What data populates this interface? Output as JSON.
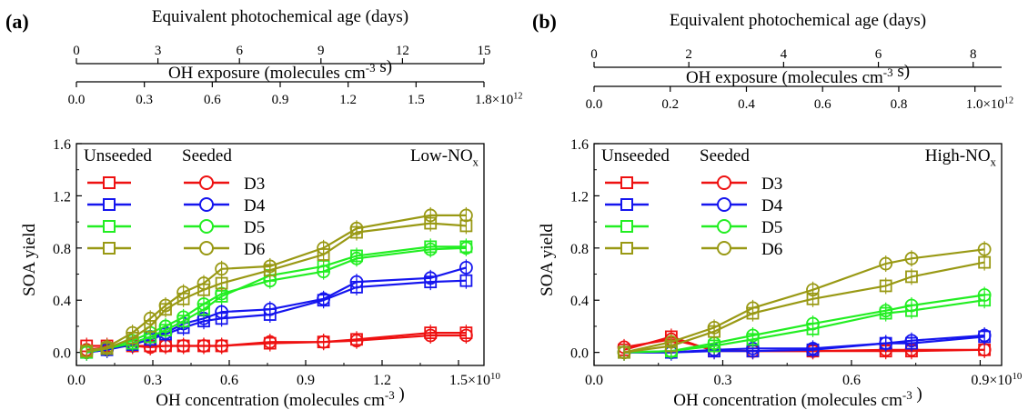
{
  "chart_data": [
    {
      "type": "line",
      "panel_label": "(a)",
      "xlabel": "OH concentration (molecules cm",
      "xlabel_exp": "-3",
      "xlabel_tail": " )",
      "xlim": [
        0,
        1.6
      ],
      "x_ticks": [
        "0.0",
        "0.3",
        "0.6",
        "0.9",
        "1.2"
      ],
      "x_tick_values": [
        0,
        0.3,
        0.6,
        0.9,
        1.2
      ],
      "x_last_tick": "1.5",
      "x_last_tick_value": 1.5,
      "x_multiplier": "×10",
      "x_multiplier_exp": "10",
      "ylabel": "SOA yield",
      "ylim": [
        -0.1,
        1.6
      ],
      "y_ticks": [
        "0.0",
        "0.4",
        "0.8",
        "1.2",
        "1.6"
      ],
      "y_tick_values": [
        0,
        0.4,
        0.8,
        1.2,
        1.6
      ],
      "top_axis_1": {
        "label": "OH exposure (molecules cm",
        "label_exp": "-3",
        "label_tail": " s)",
        "xlim": [
          0,
          1.8
        ],
        "ticks": [
          "0.0",
          "0.3",
          "0.6",
          "0.9",
          "1.2",
          "1.5"
        ],
        "tick_values": [
          0,
          0.3,
          0.6,
          0.9,
          1.2,
          1.5
        ],
        "last_tick": "1.8",
        "last_tick_value": 1.8,
        "multiplier": "×10",
        "multiplier_exp": "12"
      },
      "top_axis_2": {
        "label": "Equivalent photochemical age (days)",
        "xlim": [
          0,
          15
        ],
        "ticks": [
          "0",
          "3",
          "6",
          "9",
          "12",
          "15"
        ],
        "tick_values": [
          0,
          3,
          6,
          9,
          12,
          15
        ]
      },
      "condition": "Low-NO",
      "condition_sub": "x",
      "legend_headers": [
        "Unseeded",
        "Seeded"
      ],
      "x": [
        0.04,
        0.12,
        0.22,
        0.29,
        0.35,
        0.42,
        0.5,
        0.57,
        0.76,
        0.97,
        1.1,
        1.39,
        1.53
      ],
      "series": [
        {
          "name": "D3",
          "marker": "square",
          "color": "#ee1111",
          "values": [
            0.05,
            0.05,
            0.05,
            0.05,
            0.05,
            0.05,
            0.05,
            0.05,
            0.07,
            0.08,
            0.1,
            0.15,
            0.15
          ]
        },
        {
          "name": "D3",
          "marker": "circle",
          "color": "#ee1111",
          "values": [
            0.02,
            0.04,
            0.05,
            0.04,
            0.05,
            0.05,
            0.05,
            0.05,
            0.08,
            0.08,
            0.09,
            0.13,
            0.13
          ]
        },
        {
          "name": "D4",
          "marker": "square",
          "color": "#1515ee",
          "values": [
            0.0,
            0.02,
            0.06,
            0.1,
            0.14,
            0.19,
            0.24,
            0.26,
            0.29,
            0.4,
            0.5,
            0.54,
            0.55
          ]
        },
        {
          "name": "D4",
          "marker": "circle",
          "color": "#1515ee",
          "values": [
            0.0,
            0.02,
            0.07,
            0.12,
            0.15,
            0.22,
            0.26,
            0.31,
            0.33,
            0.41,
            0.54,
            0.57,
            0.65
          ]
        },
        {
          "name": "D5",
          "marker": "square",
          "color": "#22ee22",
          "values": [
            0.0,
            0.03,
            0.07,
            0.12,
            0.17,
            0.24,
            0.33,
            0.43,
            0.59,
            0.66,
            0.74,
            0.81,
            0.81
          ]
        },
        {
          "name": "D5",
          "marker": "circle",
          "color": "#22ee22",
          "values": [
            0.0,
            0.04,
            0.09,
            0.15,
            0.2,
            0.27,
            0.37,
            0.45,
            0.55,
            0.62,
            0.72,
            0.79,
            0.8
          ]
        },
        {
          "name": "D6",
          "marker": "square",
          "color": "#999914",
          "values": [
            0.01,
            0.03,
            0.11,
            0.2,
            0.33,
            0.41,
            0.48,
            0.53,
            0.63,
            0.75,
            0.92,
            0.99,
            0.97
          ]
        },
        {
          "name": "D6",
          "marker": "circle",
          "color": "#999914",
          "values": [
            0.01,
            0.04,
            0.15,
            0.26,
            0.36,
            0.46,
            0.53,
            0.64,
            0.66,
            0.8,
            0.95,
            1.05,
            1.05
          ]
        }
      ]
    },
    {
      "type": "line",
      "panel_label": "(b)",
      "xlabel": "OH concentration (molecules cm",
      "xlabel_exp": "-3",
      "xlabel_tail": " )",
      "xlim": [
        0,
        0.95
      ],
      "x_ticks": [
        "0.0",
        "0.3",
        "0.6"
      ],
      "x_tick_values": [
        0,
        0.3,
        0.6
      ],
      "x_last_tick": "0.9",
      "x_last_tick_value": 0.9,
      "x_multiplier": "×10",
      "x_multiplier_exp": "10",
      "ylabel": "SOA yield",
      "ylim": [
        -0.1,
        1.6
      ],
      "y_ticks": [
        "0.0",
        "0.4",
        "0.8",
        "1.2",
        "1.6"
      ],
      "y_tick_values": [
        0,
        0.4,
        0.8,
        1.2,
        1.6
      ],
      "top_axis_1": {
        "label": "OH exposure (molecules cm",
        "label_exp": "-3",
        "label_tail": " s)",
        "xlim": [
          0,
          1.07
        ],
        "ticks": [
          "0.0",
          "0.2",
          "0.4",
          "0.6",
          "0.8"
        ],
        "tick_values": [
          0,
          0.2,
          0.4,
          0.6,
          0.8
        ],
        "last_tick": "1.0",
        "last_tick_value": 1.0,
        "multiplier": "×10",
        "multiplier_exp": "12"
      },
      "top_axis_2": {
        "label": "Equivalent photochemical age (days)",
        "xlim": [
          0,
          8.6
        ],
        "ticks": [
          "0",
          "2",
          "4",
          "6",
          "8"
        ],
        "tick_values": [
          0,
          2,
          4,
          6,
          8
        ]
      },
      "condition": "High-NO",
      "condition_sub": "x",
      "legend_headers": [
        "Unseeded",
        "Seeded"
      ],
      "x": [
        0.07,
        0.18,
        0.28,
        0.37,
        0.51,
        0.68,
        0.74,
        0.91
      ],
      "series": [
        {
          "name": "D3",
          "marker": "square",
          "color": "#ee1111",
          "values": [
            0.02,
            0.12,
            0.01,
            0.01,
            0.01,
            0.01,
            0.01,
            0.02
          ]
        },
        {
          "name": "D3",
          "marker": "circle",
          "color": "#ee1111",
          "values": [
            0.04,
            0.1,
            0.02,
            0.01,
            0.01,
            0.02,
            0.02,
            0.02
          ]
        },
        {
          "name": "D4",
          "marker": "square",
          "color": "#1515ee",
          "values": [
            0.0,
            0.0,
            0.01,
            0.01,
            0.02,
            0.07,
            0.07,
            0.12
          ]
        },
        {
          "name": "D4",
          "marker": "circle",
          "color": "#1515ee",
          "values": [
            0.0,
            0.0,
            0.02,
            0.03,
            0.03,
            0.07,
            0.09,
            0.13
          ]
        },
        {
          "name": "D5",
          "marker": "square",
          "color": "#22ee22",
          "values": [
            0.0,
            0.01,
            0.05,
            0.1,
            0.18,
            0.3,
            0.32,
            0.4
          ]
        },
        {
          "name": "D5",
          "marker": "circle",
          "color": "#22ee22",
          "values": [
            0.0,
            0.01,
            0.07,
            0.13,
            0.22,
            0.32,
            0.36,
            0.44
          ]
        },
        {
          "name": "D6",
          "marker": "square",
          "color": "#999914",
          "values": [
            0.0,
            0.05,
            0.16,
            0.3,
            0.41,
            0.51,
            0.58,
            0.69
          ]
        },
        {
          "name": "D6",
          "marker": "circle",
          "color": "#999914",
          "values": [
            0.0,
            0.08,
            0.19,
            0.34,
            0.48,
            0.68,
            0.72,
            0.79
          ]
        }
      ]
    }
  ]
}
